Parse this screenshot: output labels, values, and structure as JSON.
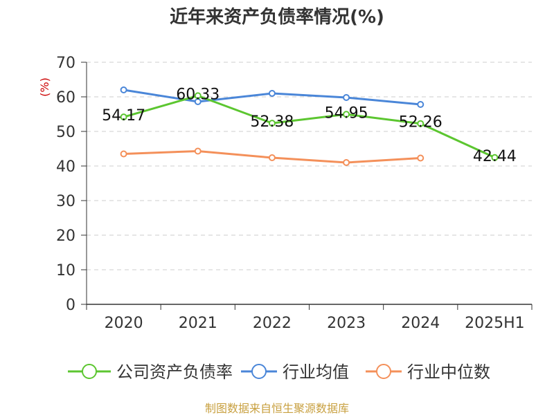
{
  "chart_data": {
    "type": "line",
    "title": "近年来资产负债率情况(%)",
    "ylabel": "(%)",
    "categories": [
      "2020",
      "2021",
      "2022",
      "2023",
      "2024",
      "2025H1"
    ],
    "ylim": [
      0,
      70
    ],
    "yticks": [
      0,
      10,
      20,
      30,
      40,
      50,
      60,
      70
    ],
    "grid": true,
    "legend_position": "bottom",
    "series": [
      {
        "name": "公司资产负债率",
        "color": "#5cc630",
        "values": [
          54.17,
          60.33,
          52.38,
          54.95,
          52.26,
          42.44
        ],
        "labels": [
          "54.17",
          "60.33",
          "52.38",
          "54.95",
          "52.26",
          "42.44"
        ]
      },
      {
        "name": "行业均值",
        "color": "#4a86d8",
        "values": [
          62.0,
          58.6,
          61.0,
          59.8,
          57.8,
          null
        ]
      },
      {
        "name": "行业中位数",
        "color": "#f4905a",
        "values": [
          43.5,
          44.3,
          42.4,
          41.0,
          42.3,
          null
        ]
      }
    ]
  },
  "source": "制图数据来自恒生聚源数据库"
}
